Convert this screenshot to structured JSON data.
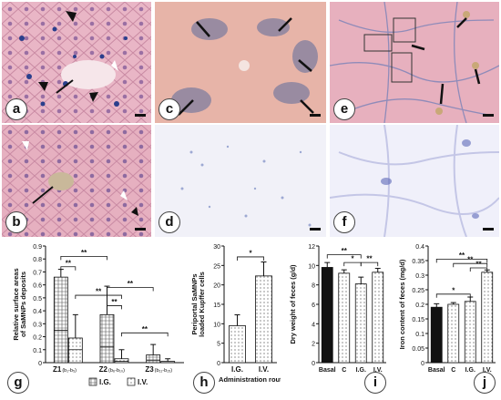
{
  "figure": {
    "panel_labels": [
      "a",
      "b",
      "c",
      "d",
      "e",
      "f",
      "g",
      "h",
      "i",
      "j"
    ]
  },
  "colors": {
    "he_pink": "#e8a8b8",
    "prussian_blue": "#2e55a6",
    "tan": "#d9a37a",
    "pale_bg": "#f1f1f8"
  },
  "chart_data": [
    {
      "id": "g",
      "type": "bar",
      "ylabel": "Relative surface areas of SaMNPs deposits",
      "ylim": [
        0,
        0.9
      ],
      "yticks": [
        "0",
        "0.1",
        "0.2",
        "0.3",
        "0.4",
        "0.5",
        "0.6",
        "0.7",
        "0.8",
        "0.9"
      ],
      "categories": [
        "Z1",
        "Z2",
        "Z3"
      ],
      "category_subs": [
        "(b₁-b₅)",
        "(b₆-b₁₀)",
        "(b₁₁-b₁₅)"
      ],
      "legend": [
        "I.G.",
        "I.V."
      ],
      "series": [
        {
          "name": "I.G.",
          "values": [
            0.66,
            0.37,
            0.06
          ],
          "mid": [
            0.25,
            0.12,
            0.02
          ],
          "err": [
            0.06,
            0.22,
            0.08
          ]
        },
        {
          "name": "I.V.",
          "values": [
            0.19,
            0.03,
            0.01
          ],
          "mid": [
            0.1,
            0.01,
            0.0
          ],
          "err": [
            0.18,
            0.07,
            0.02
          ]
        }
      ],
      "sig": [
        "**",
        "**",
        "**",
        "**",
        "**",
        "**"
      ]
    },
    {
      "id": "h",
      "type": "bar",
      "ylabel": "Periportal SaMNPs loaded Kupffer cells",
      "xlabel": "Administration routes",
      "ylim": [
        0,
        30
      ],
      "yticks": [
        "0",
        "5",
        "10",
        "15",
        "20",
        "25",
        "30"
      ],
      "categories": [
        "I.G.",
        "I.V."
      ],
      "values": [
        9.5,
        22.3
      ],
      "err": [
        2.8,
        3.6
      ],
      "sig": [
        "*"
      ]
    },
    {
      "id": "i",
      "type": "bar",
      "ylabel": "Dry weight of feces (g/d)",
      "ylim": [
        0,
        12
      ],
      "yticks": [
        "0",
        "2",
        "4",
        "6",
        "8",
        "10",
        "12"
      ],
      "categories": [
        "Basal",
        "C",
        "I.G.",
        "I.V."
      ],
      "values": [
        9.8,
        9.2,
        8.1,
        9.3
      ],
      "err": [
        0.5,
        0.35,
        0.7,
        0.4
      ],
      "sig": [
        "**",
        "*",
        "**"
      ]
    },
    {
      "id": "j",
      "type": "bar",
      "ylabel": "Iron content of feces (mg/d)",
      "ylim": [
        0,
        0.4
      ],
      "yticks": [
        "0",
        "0.05",
        "0.1",
        "0.15",
        "0.2",
        "0.25",
        "0.3",
        "0.35",
        "0.4"
      ],
      "categories": [
        "Basal",
        "C",
        "I.G.",
        "I.V."
      ],
      "values": [
        0.19,
        0.2,
        0.21,
        0.31
      ],
      "err": [
        0.012,
        0.006,
        0.015,
        0.008
      ],
      "sig": [
        "*",
        "**",
        "**",
        "**"
      ]
    }
  ]
}
